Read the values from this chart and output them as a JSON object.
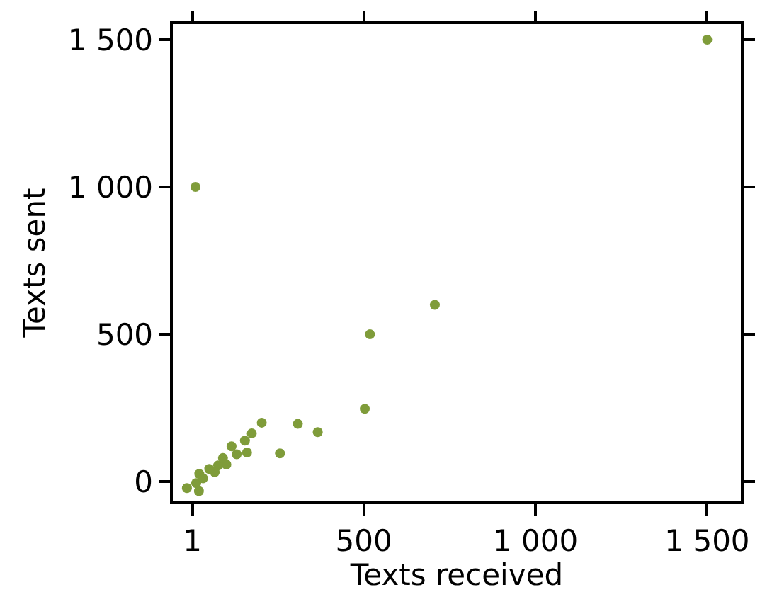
{
  "chart_data": {
    "type": "scatter",
    "xlabel": "Texts received",
    "ylabel": "Texts sent",
    "x": [
      1500,
      10,
      707,
      518,
      503,
      366,
      308,
      256,
      203,
      174,
      154,
      160,
      115,
      130,
      100,
      76,
      21,
      12,
      -15,
      20,
      32,
      66,
      90,
      50
    ],
    "series": [
      {
        "color": "#7f9c3a",
        "values": [
          1500,
          1000,
          600,
          500,
          247,
          168,
          196,
          96,
          200,
          164,
          139,
          99,
          120,
          93,
          58,
          55,
          26,
          -5,
          -22,
          -32,
          11,
          32,
          80,
          43
        ]
      }
    ],
    "xlim": [
      -56,
      1598
    ],
    "ylim": [
      -67,
      1553
    ],
    "xticks": [
      {
        "value": 1,
        "label": "1"
      },
      500,
      {
        "value": 1000,
        "label": "1 000"
      },
      {
        "value": 1500,
        "label": "1 500"
      }
    ],
    "yticks": [
      0,
      500,
      {
        "value": 1000,
        "label": "1 000"
      },
      {
        "value": 1500,
        "label": "1 500"
      }
    ],
    "grid": false,
    "marker": "circle"
  }
}
